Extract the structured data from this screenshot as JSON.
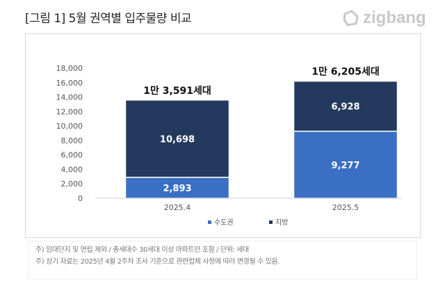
{
  "title": "[그림 1] 5월 권역별 입주물량 비교",
  "logo": "zigbang",
  "colors": {
    "capital": "#3a6fc4",
    "regional": "#233a5e"
  },
  "chart_data": {
    "type": "bar",
    "stacked": true,
    "categories": [
      "2025.4",
      "2025.5"
    ],
    "series": [
      {
        "name": "수도권",
        "values": [
          2893,
          9277
        ]
      },
      {
        "name": "지방",
        "values": [
          10698,
          6928
        ]
      }
    ],
    "data_labels": [
      [
        "2,893",
        "9,277"
      ],
      [
        "10,698",
        "6,928"
      ]
    ],
    "totals": [
      "1만 3,591세대",
      "1만 6,205세대"
    ],
    "ylim": [
      0,
      18000
    ],
    "yticks": [
      "0",
      "2,000",
      "4,000",
      "6,000",
      "8,000",
      "10,000",
      "12,000",
      "14,000",
      "16,000",
      "18,000"
    ],
    "legend": "bottom",
    "grid": false
  },
  "notes": [
    "주) 임대단지 및 연립 제외 / 총세대수 30세대 이상 아파트만 포함 / 단위: 세대",
    "주) 상기 자료는 2025년 4월 2주차 조사 기준으로 관련업체 사정에 따라 변경될 수 있음."
  ]
}
